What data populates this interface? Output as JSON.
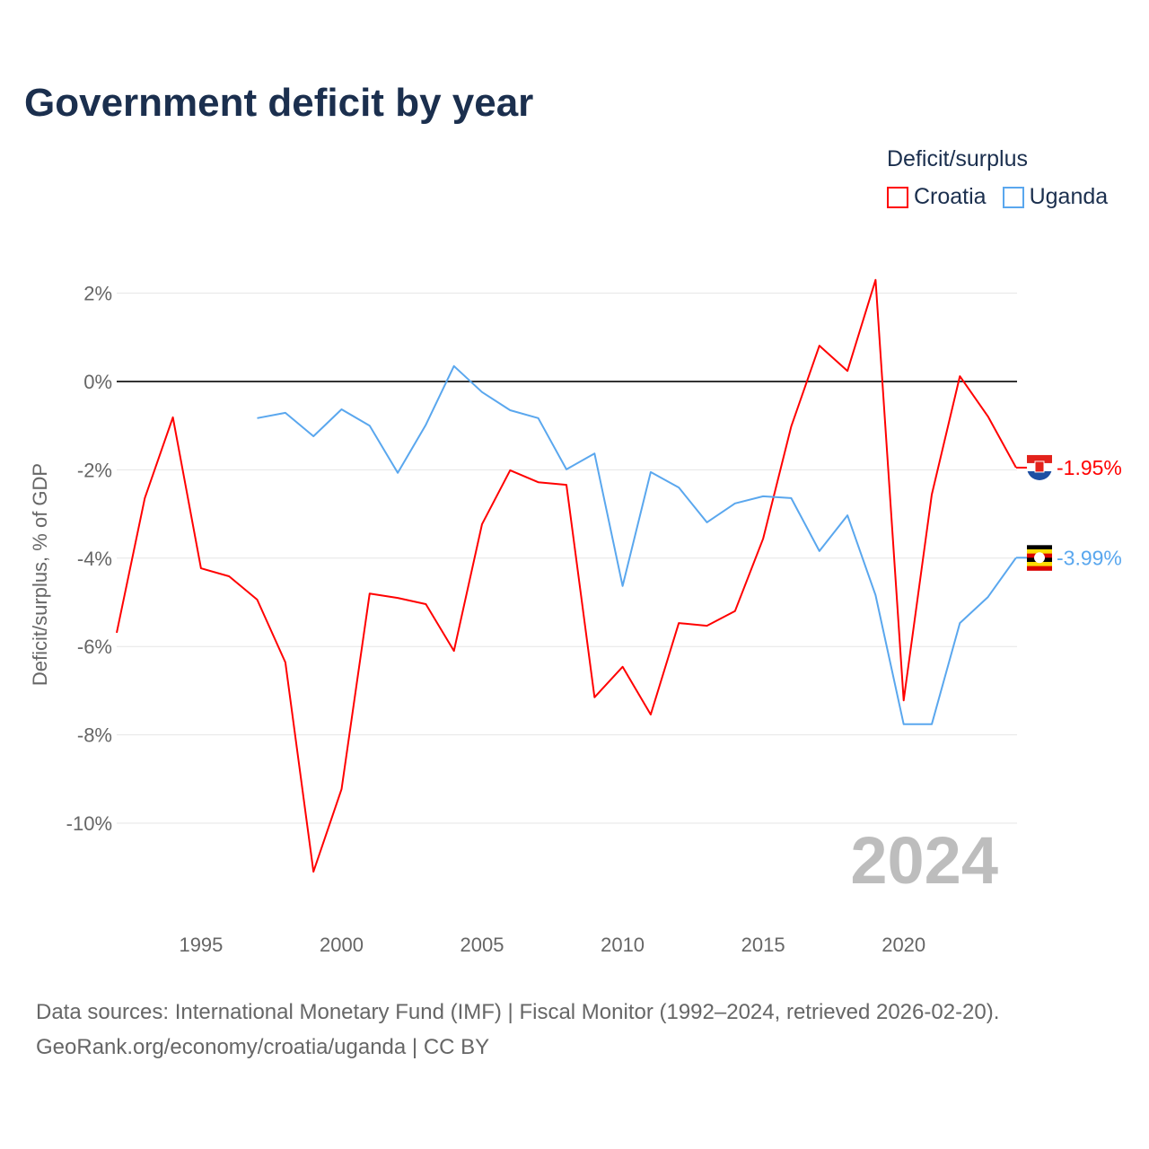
{
  "title": "Government deficit by year",
  "legend": {
    "title": "Deficit/surplus",
    "items": [
      {
        "label": "Croatia",
        "color": "#ff0000"
      },
      {
        "label": "Uganda",
        "color": "#5aa7ee"
      }
    ]
  },
  "source": {
    "line1": "Data sources: International Monetary Fund (IMF) | Fiscal Monitor (1992–2024, retrieved 2026-02-20).",
    "line2": "GeoRank.org/economy/croatia/uganda | CC BY"
  },
  "chart_data": {
    "type": "line",
    "ylabel": "Deficit/surplus, % of GDP",
    "xlim": [
      1992,
      2024
    ],
    "ylim": [
      -11.8,
      2.9
    ],
    "yticks": [
      2,
      0,
      -2,
      -4,
      -6,
      -8,
      -10
    ],
    "ytick_labels": [
      "2%",
      "0%",
      "-2%",
      "-4%",
      "-6%",
      "-8%",
      "-10%"
    ],
    "xticks": [
      1995,
      2000,
      2005,
      2010,
      2015,
      2020
    ],
    "xtick_labels": [
      "1995",
      "2000",
      "2005",
      "2010",
      "2015",
      "2020"
    ],
    "year_watermark": "2024",
    "series": [
      {
        "name": "Croatia",
        "color": "#ff0000",
        "end_label": "-1.95%",
        "start_year": 1992,
        "values": [
          -5.69,
          -2.64,
          -0.81,
          -4.23,
          -4.41,
          -4.94,
          -6.36,
          -11.1,
          -9.23,
          -4.8,
          -4.9,
          -5.04,
          -6.1,
          -3.23,
          -2.01,
          -2.28,
          -2.34,
          -7.15,
          -6.46,
          -7.54,
          -5.47,
          -5.53,
          -5.2,
          -3.56,
          -1.02,
          0.81,
          0.24,
          2.3,
          -7.22,
          -2.56,
          0.12,
          -0.79,
          -1.95
        ]
      },
      {
        "name": "Uganda",
        "color": "#5aa7ee",
        "end_label": "-3.99%",
        "start_year": 1997,
        "values": [
          -0.83,
          -0.71,
          -1.24,
          -0.63,
          -1.0,
          -2.07,
          -0.98,
          0.35,
          -0.24,
          -0.65,
          -0.83,
          -1.99,
          -1.63,
          -4.63,
          -2.05,
          -2.4,
          -3.19,
          -2.76,
          -2.6,
          -2.64,
          -3.84,
          -3.03,
          -4.84,
          -7.76,
          -7.76,
          -5.47,
          -4.88,
          -3.99
        ]
      }
    ]
  }
}
